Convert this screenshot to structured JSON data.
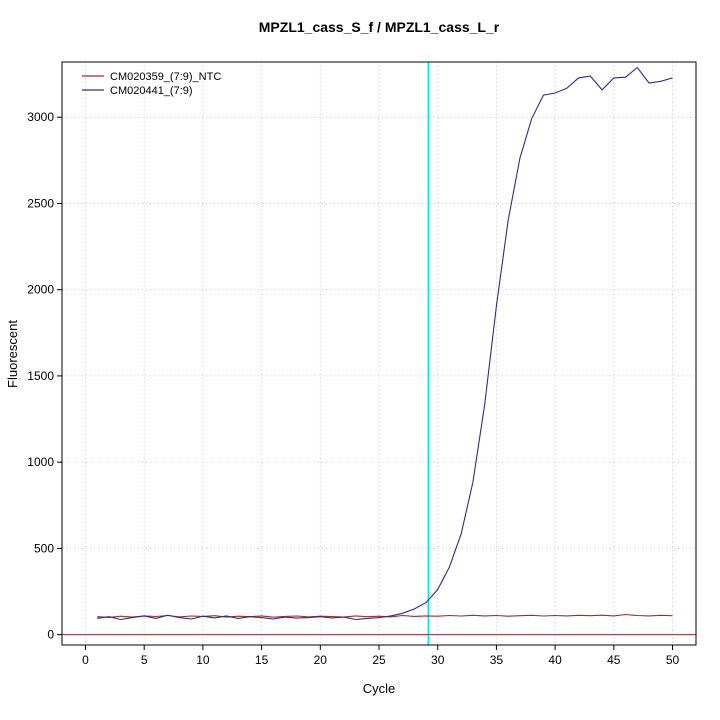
{
  "chart_data": {
    "type": "line",
    "title": "MPZL1_cass_S_f / MPZL1_cass_L_r",
    "xlabel": "Cycle",
    "ylabel": "Fluorescent",
    "xlim": [
      -2,
      52
    ],
    "ylim": [
      -60,
      3320
    ],
    "xticks": [
      0,
      5,
      10,
      15,
      20,
      25,
      30,
      35,
      40,
      45,
      50
    ],
    "yticks": [
      0,
      500,
      1000,
      1500,
      2000,
      2500,
      3000
    ],
    "grid": true,
    "legend_position": "top-left",
    "colors": {
      "grid": "#c6c6c6",
      "axis": "#000000",
      "background": "#ffffff"
    },
    "ct_line": {
      "x": 29.2,
      "color": "#00e8e8"
    },
    "threshold_line": {
      "y": 0,
      "color": "#a02c2c"
    },
    "x": [
      1,
      2,
      3,
      4,
      5,
      6,
      7,
      8,
      9,
      10,
      11,
      12,
      13,
      14,
      15,
      16,
      17,
      18,
      19,
      20,
      21,
      22,
      23,
      24,
      25,
      26,
      27,
      28,
      29,
      30,
      31,
      32,
      33,
      34,
      35,
      36,
      37,
      38,
      39,
      40,
      41,
      42,
      43,
      44,
      45,
      46,
      47,
      48,
      49,
      50
    ],
    "series": [
      {
        "name": "CM020359_(7:9)_NTC",
        "color": "#a02c2c",
        "values": [
          104,
          100,
          107,
          102,
          109,
          105,
          111,
          103,
          108,
          106,
          110,
          102,
          107,
          104,
          109,
          101,
          106,
          108,
          103,
          107,
          105,
          102,
          109,
          104,
          107,
          103,
          111,
          106,
          109,
          107,
          111,
          108,
          112,
          109,
          111,
          107,
          110,
          112,
          108,
          111,
          109,
          112,
          110,
          113,
          109,
          117,
          111,
          109,
          112,
          110
        ]
      },
      {
        "name": "CM020441_(7:9)",
        "color": "#2d2d86",
        "values": [
          95,
          104,
          88,
          99,
          109,
          94,
          113,
          99,
          91,
          107,
          97,
          109,
          94,
          104,
          99,
          91,
          102,
          96,
          99,
          104,
          97,
          102,
          88,
          94,
          99,
          109,
          124,
          149,
          186,
          262,
          392,
          585,
          884,
          1335,
          1905,
          2400,
          2762,
          2990,
          3128,
          3140,
          3168,
          3228,
          3238,
          3158,
          3228,
          3232,
          3288,
          3198,
          3208,
          3228
        ]
      }
    ]
  }
}
